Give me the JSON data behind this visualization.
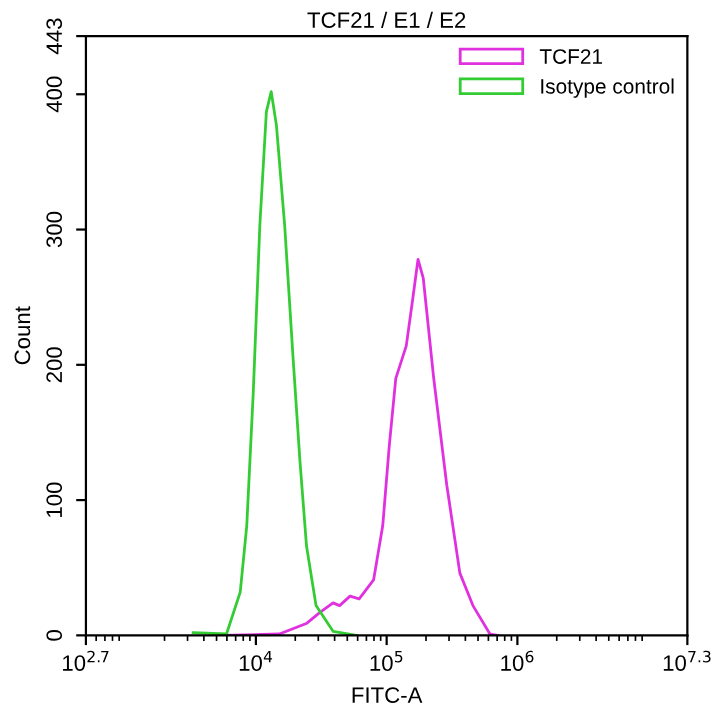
{
  "chart_data": {
    "type": "line",
    "title": "TCF21 / E1 / E2",
    "xlabel": "FITC-A",
    "ylabel": "Count",
    "log": "x",
    "xlim": [
      501,
      19952623
    ],
    "ylim": [
      0,
      443
    ],
    "xticks": [
      {
        "value": 501,
        "label": "10$^{2.7}$"
      },
      {
        "value": 10000,
        "label": "10$^{4}$"
      },
      {
        "value": 100000,
        "label": "10$^{5}$"
      },
      {
        "value": 1000000,
        "label": "10$^{6}$"
      },
      {
        "value": 19952623,
        "label": "10$^{7.3}$"
      }
    ],
    "yticks": [
      0,
      100,
      200,
      300,
      400,
      443
    ],
    "grid": false,
    "legend": "top right",
    "marker": "none",
    "line_style": "solid",
    "series": [
      {
        "name": "TCF21",
        "color": "#e030e0",
        "x": [
          5370,
          15136,
          24547,
          30903,
          38905,
          43652,
          52481,
          61660,
          79433,
          93325,
          104713,
          117490,
          141254,
          158489,
          173780,
          190546,
          229087,
          288403,
          363078,
          457088,
          616595,
          707946
        ],
        "values": [
          0,
          1,
          9,
          17,
          24,
          22,
          29,
          27,
          41,
          81,
          140,
          190,
          214,
          249,
          278,
          264,
          190,
          111,
          46,
          22,
          1,
          0
        ]
      },
      {
        "name": "Isotype control",
        "color": "#33cc33",
        "x": [
          3311,
          5957,
          7586,
          8511,
          9550,
          10715,
          12023,
          13092,
          14355,
          16596,
          19275,
          21677,
          24378,
          28840,
          38905,
          58884
        ],
        "values": [
          2,
          1,
          32,
          81,
          180,
          303,
          387,
          402,
          377,
          303,
          204,
          130,
          66,
          22,
          3,
          0
        ]
      }
    ]
  }
}
